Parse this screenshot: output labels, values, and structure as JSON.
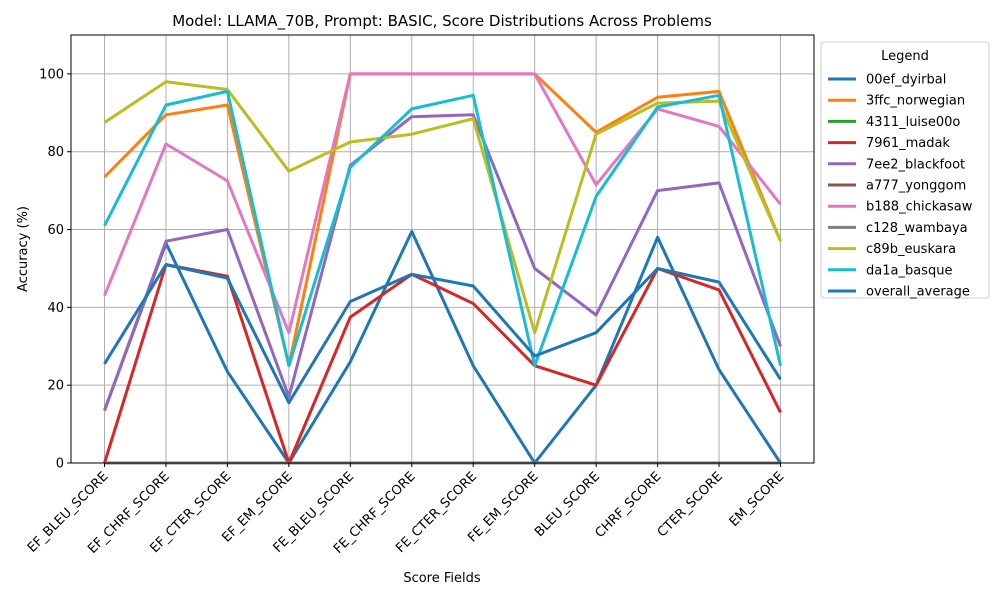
{
  "chart_data": {
    "type": "line",
    "title": "Model: LLAMA_70B, Prompt: BASIC, Score Distributions Across Problems",
    "xlabel": "Score Fields",
    "ylabel": "Accuracy (%)",
    "ylim": [
      0,
      110
    ],
    "yticks": [
      0,
      20,
      40,
      60,
      80,
      100
    ],
    "grid": true,
    "legend_title": "Legend",
    "legend_position": "outside-right",
    "categories": [
      "EF_BLEU_SCORE",
      "EF_CHRF_SCORE",
      "EF_CTER_SCORE",
      "EF_EM_SCORE",
      "FE_BLEU_SCORE",
      "FE_CHRF_SCORE",
      "FE_CTER_SCORE",
      "FE_EM_SCORE",
      "BLEU_SCORE",
      "CHRF_SCORE",
      "CTER_SCORE",
      "EM_SCORE"
    ],
    "series": [
      {
        "name": "00ef_dyirbal",
        "color": "#1f77b4",
        "values": [
          13.5,
          56.5,
          23.5,
          0,
          26,
          59.5,
          25,
          0,
          20,
          58,
          24,
          0
        ]
      },
      {
        "name": "3ffc_norwegian",
        "color": "#ff7f0e",
        "values": [
          73.5,
          89.5,
          92,
          25,
          100,
          100,
          100,
          100,
          85,
          94,
          95.5,
          57
        ]
      },
      {
        "name": "4311_luise00o",
        "color": "#2ca02c",
        "values": [
          0,
          0,
          0,
          0,
          0,
          0,
          0,
          0,
          0,
          0,
          0,
          0
        ]
      },
      {
        "name": "7961_madak",
        "color": "#d62728",
        "values": [
          0,
          51,
          48,
          0,
          37.5,
          48.5,
          41,
          25,
          20,
          50,
          44.5,
          13
        ]
      },
      {
        "name": "7ee2_blackfoot",
        "color": "#9467bd",
        "values": [
          13.5,
          57,
          60,
          17,
          76.5,
          89,
          89.5,
          50,
          38,
          70,
          72,
          30
        ]
      },
      {
        "name": "a777_yonggom",
        "color": "#8c564b",
        "values": [
          0,
          0,
          0,
          0,
          0,
          0,
          0,
          0,
          0,
          0,
          0,
          0
        ]
      },
      {
        "name": "b188_chickasaw",
        "color": "#e377c2",
        "values": [
          43,
          82,
          72.5,
          33.5,
          100,
          100,
          100,
          100,
          71.5,
          91,
          86.5,
          66.5
        ]
      },
      {
        "name": "c128_wambaya",
        "color": "#7f7f7f",
        "values": [
          0,
          0,
          0,
          0,
          0,
          0,
          0,
          0,
          0,
          0,
          0,
          0
        ]
      },
      {
        "name": "c89b_euskara",
        "color": "#bcbd22",
        "values": [
          87.5,
          98,
          96,
          75,
          82.5,
          84.5,
          88.5,
          33.5,
          84.5,
          92.5,
          93,
          57
        ]
      },
      {
        "name": "da1a_basque",
        "color": "#17becf",
        "values": [
          61,
          92,
          95.5,
          25,
          76,
          91,
          94.5,
          25,
          68.5,
          91.5,
          94.5,
          25
        ]
      },
      {
        "name": "overall_average",
        "color": "#1f77b4",
        "values": [
          25.5,
          51,
          47.5,
          15.5,
          41.5,
          48.5,
          45.5,
          27.5,
          33.5,
          50,
          46.5,
          21.5
        ]
      }
    ]
  }
}
